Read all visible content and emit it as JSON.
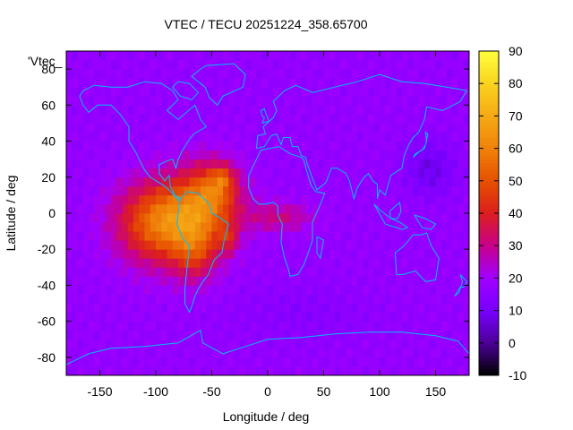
{
  "chart_data": {
    "type": "heatmap",
    "title": "VTEC / TECU 20251224_358.65700",
    "xlabel": "Longitude / deg",
    "ylabel": "Latitude / deg",
    "key_label": "'Vtec_",
    "xlim": [
      -180,
      180
    ],
    "ylim": [
      -90,
      90
    ],
    "x_ticks": [
      -150,
      -100,
      -50,
      0,
      50,
      100,
      150
    ],
    "y_ticks": [
      -80,
      -60,
      -40,
      -20,
      0,
      20,
      40,
      60,
      80
    ],
    "x_tick_labels": [
      "-150",
      "-100",
      "-50",
      "0",
      "50",
      "100",
      "150"
    ],
    "y_tick_labels": [
      "-80",
      "-60",
      "-40",
      "-20",
      "0",
      "20",
      "40",
      "60",
      "80"
    ],
    "colorbar": {
      "range": [
        -10,
        90
      ],
      "ticks": [
        -10,
        0,
        10,
        20,
        30,
        40,
        50,
        60,
        70,
        80,
        90
      ],
      "tick_labels": [
        "-10",
        "0",
        "10",
        "20",
        "30",
        "40",
        "50",
        "60",
        "70",
        "80",
        "90"
      ],
      "palette": [
        "#000000",
        "#4b0096",
        "#7800ff",
        "#a000ff",
        "#c8008c",
        "#dc1e1e",
        "#e65000",
        "#f0820a",
        "#f5aa14",
        "#fad21e",
        "#ffff3c"
      ]
    },
    "grid_resolution_deg": 5,
    "background_value": 17,
    "anomalies": [
      {
        "lon": -95,
        "lat": -5,
        "sx": 38,
        "sy": 22,
        "value": 41
      },
      {
        "lon": -55,
        "lat": 5,
        "sx": 30,
        "sy": 22,
        "value": 30
      },
      {
        "lon": -45,
        "lat": 15,
        "sx": 18,
        "sy": 12,
        "value": 14
      },
      {
        "lon": -65,
        "lat": -22,
        "sx": 20,
        "sy": 16,
        "value": 18
      },
      {
        "lon": -35,
        "lat": -14,
        "sx": 8,
        "sy": 8,
        "value": 14
      },
      {
        "lon": -40,
        "lat": 20,
        "sx": 8,
        "sy": 6,
        "value": 14
      },
      {
        "lon": 10,
        "lat": -2,
        "sx": 30,
        "sy": 8,
        "value": 14
      },
      {
        "lon": 145,
        "lat": 25,
        "sx": 22,
        "sy": 15,
        "value": -9
      },
      {
        "lon": 30,
        "lat": -55,
        "sx": 60,
        "sy": 15,
        "value": -3
      }
    ],
    "coastline_color": "#00bfff"
  }
}
